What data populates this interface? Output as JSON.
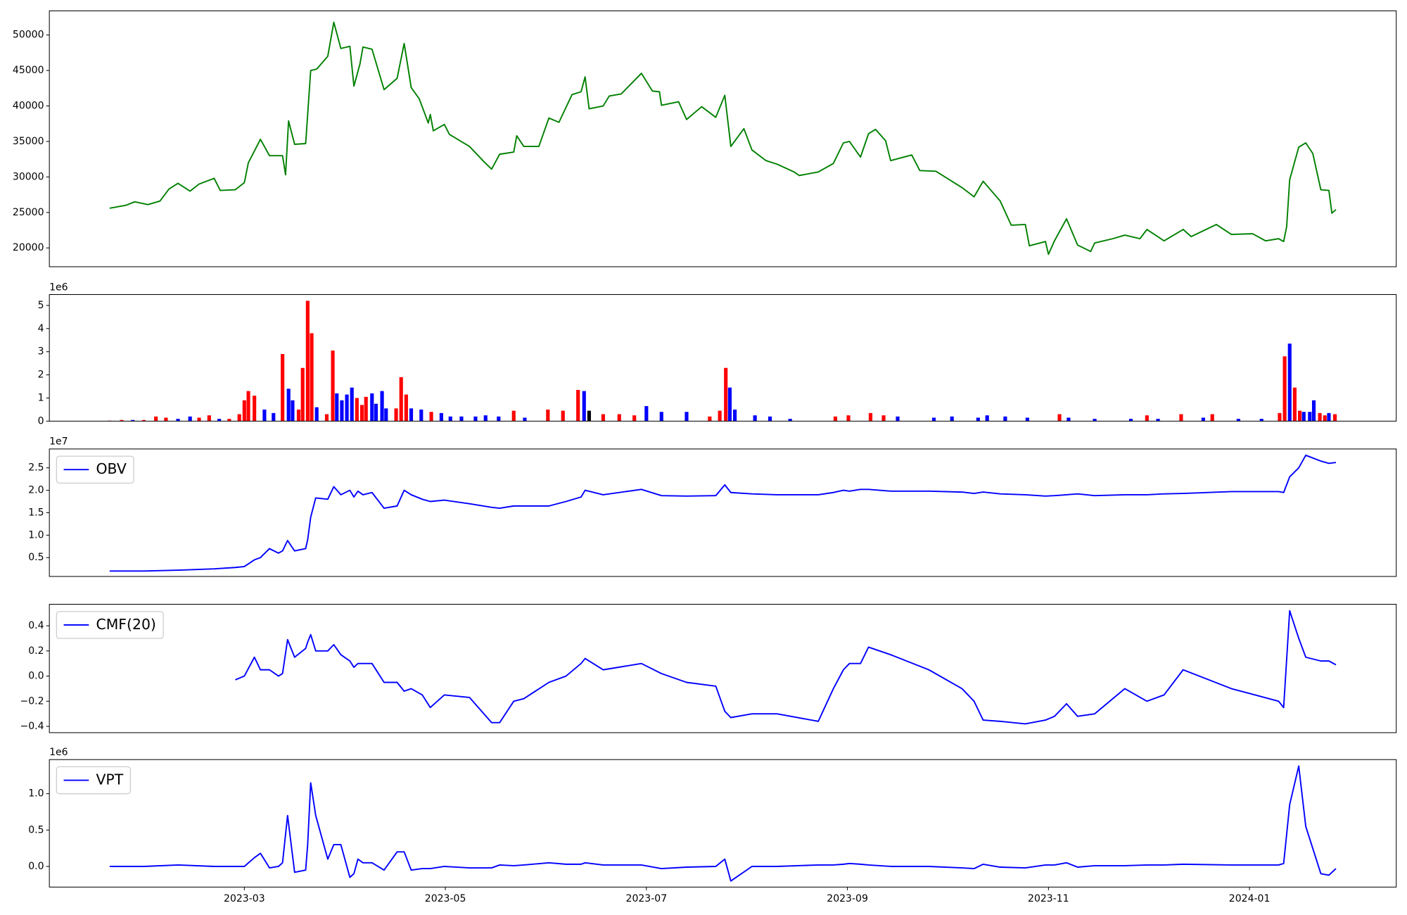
{
  "chart_data": [
    {
      "type": "line",
      "xlim": [
        1.06,
        14.46
      ],
      "ylim": [
        17350,
        53400
      ],
      "yticks": [
        20000,
        25000,
        30000,
        35000,
        40000,
        45000,
        50000
      ],
      "x": [
        1.66,
        1.82,
        1.91,
        2.04,
        2.16,
        2.25,
        2.34,
        2.46,
        2.55,
        2.7,
        2.76,
        2.91,
        3.0,
        3.04,
        3.16,
        3.25,
        3.38,
        3.41,
        3.44,
        3.5,
        3.61,
        3.66,
        3.72,
        3.83,
        3.89,
        3.96,
        4.05,
        4.09,
        4.15,
        4.18,
        4.27,
        4.39,
        4.52,
        4.59,
        4.66,
        4.74,
        4.83,
        4.85,
        4.88,
        4.99,
        5.04,
        5.24,
        5.38,
        5.46,
        5.54,
        5.68,
        5.71,
        5.78,
        5.93,
        6.03,
        6.13,
        6.26,
        6.35,
        6.39,
        6.43,
        6.57,
        6.63,
        6.75,
        6.95,
        7.06,
        7.13,
        7.15,
        7.32,
        7.4,
        7.55,
        7.69,
        7.78,
        7.84,
        7.97,
        8.05,
        8.19,
        8.3,
        8.47,
        8.52,
        8.71,
        8.86,
        8.96,
        9.02,
        9.13,
        9.21,
        9.28,
        9.38,
        9.43,
        9.64,
        9.72,
        9.88,
        10.14,
        10.26,
        10.35,
        10.52,
        10.63,
        10.77,
        10.81,
        10.97,
        11.0,
        11.06,
        11.18,
        11.29,
        11.42,
        11.46,
        11.64,
        11.76,
        11.91,
        11.98,
        12.15,
        12.34,
        12.42,
        12.67,
        12.82,
        13.03,
        13.16,
        13.29,
        13.34,
        13.37,
        13.4,
        13.49,
        13.56,
        13.63,
        13.71,
        13.79,
        13.82,
        13.86
      ],
      "series": [
        {
          "color": "#008000",
          "values": [
            25600,
            26000,
            26500,
            26100,
            26600,
            28300,
            29100,
            28000,
            29000,
            29800,
            28100,
            28200,
            29200,
            32000,
            35300,
            33000,
            33000,
            30300,
            37900,
            34600,
            34700,
            45000,
            45200,
            47000,
            51800,
            48100,
            48400,
            42800,
            45900,
            48300,
            48000,
            42300,
            43900,
            48800,
            42600,
            41000,
            37600,
            38800,
            36500,
            37400,
            36000,
            34300,
            32200,
            31100,
            33200,
            33500,
            35800,
            34300,
            34300,
            38300,
            37700,
            41600,
            42000,
            44100,
            39600,
            40000,
            41400,
            41700,
            44600,
            42100,
            42000,
            40100,
            40600,
            38100,
            39900,
            38400,
            41500,
            34300,
            36800,
            33800,
            32300,
            31800,
            30700,
            30200,
            30700,
            31900,
            34800,
            35000,
            32800,
            36100,
            36700,
            35100,
            32300,
            33100,
            30900,
            30800,
            28500,
            27200,
            29400,
            26600,
            23200,
            23300,
            20300,
            20900,
            19100,
            21000,
            24100,
            20400,
            19500,
            20700,
            21300,
            21800,
            21300,
            22600,
            21000,
            22600,
            21600,
            23300,
            21900,
            22000,
            21000,
            21300,
            20900,
            23000,
            29600,
            34200,
            34800,
            33300,
            28200,
            28100,
            24900,
            25400
          ]
        }
      ]
    },
    {
      "type": "bar",
      "offset_label": "1e6",
      "xlim": [
        1.06,
        14.46
      ],
      "ylim": [
        0,
        5.47
      ],
      "yticks": [
        0,
        1,
        2,
        3,
        4,
        5
      ],
      "x": [
        1.66,
        1.78,
        1.89,
        2.0,
        2.12,
        2.22,
        2.34,
        2.46,
        2.55,
        2.65,
        2.75,
        2.85,
        2.95,
        3.0,
        3.04,
        3.1,
        3.2,
        3.29,
        3.38,
        3.44,
        3.48,
        3.54,
        3.58,
        3.63,
        3.67,
        3.72,
        3.82,
        3.88,
        3.92,
        3.97,
        4.02,
        4.07,
        4.12,
        4.17,
        4.21,
        4.27,
        4.31,
        4.37,
        4.41,
        4.51,
        4.56,
        4.61,
        4.66,
        4.76,
        4.86,
        4.96,
        5.05,
        5.16,
        5.3,
        5.4,
        5.53,
        5.68,
        5.79,
        6.02,
        6.17,
        6.32,
        6.38,
        6.43,
        6.57,
        6.73,
        6.88,
        7.0,
        7.15,
        7.4,
        7.63,
        7.73,
        7.79,
        7.83,
        7.88,
        8.08,
        8.23,
        8.43,
        8.88,
        9.01,
        9.23,
        9.36,
        9.5,
        9.86,
        10.04,
        10.3,
        10.39,
        10.57,
        10.79,
        11.11,
        11.2,
        11.46,
        11.82,
        11.98,
        12.09,
        12.32,
        12.54,
        12.63,
        12.89,
        13.12,
        13.3,
        13.35,
        13.4,
        13.45,
        13.5,
        13.54,
        13.6,
        13.64,
        13.7,
        13.75,
        13.79,
        13.85
      ],
      "values": [
        0.02,
        0.05,
        0.05,
        0.05,
        0.2,
        0.15,
        0.1,
        0.2,
        0.15,
        0.25,
        0.1,
        0.1,
        0.3,
        0.9,
        1.3,
        1.1,
        0.5,
        0.35,
        2.9,
        1.4,
        0.9,
        0.5,
        2.3,
        5.2,
        3.8,
        0.6,
        0.3,
        3.05,
        1.2,
        0.9,
        1.15,
        1.45,
        1.0,
        0.7,
        1.05,
        1.2,
        0.75,
        1.3,
        0.55,
        0.55,
        1.9,
        1.15,
        0.55,
        0.5,
        0.4,
        0.35,
        0.2,
        0.2,
        0.2,
        0.25,
        0.2,
        0.45,
        0.15,
        0.5,
        0.45,
        1.35,
        1.3,
        0.45,
        0.3,
        0.3,
        0.25,
        0.65,
        0.4,
        0.4,
        0.2,
        0.45,
        2.3,
        1.45,
        0.5,
        0.25,
        0.2,
        0.1,
        0.2,
        0.25,
        0.35,
        0.25,
        0.2,
        0.15,
        0.2,
        0.15,
        0.25,
        0.2,
        0.15,
        0.3,
        0.15,
        0.1,
        0.1,
        0.25,
        0.1,
        0.3,
        0.15,
        0.3,
        0.1,
        0.1,
        0.35,
        2.8,
        3.35,
        1.45,
        0.45,
        0.4,
        0.4,
        0.9,
        0.35,
        0.25,
        0.35,
        0.3
      ],
      "colors": [
        "#ff0000",
        "#ff0000",
        "#0000ff",
        "#ff0000",
        "#ff0000",
        "#ff0000",
        "#0000ff",
        "#0000ff",
        "#ff0000",
        "#ff0000",
        "#0000ff",
        "#ff0000",
        "#ff0000",
        "#ff0000",
        "#ff0000",
        "#ff0000",
        "#0000ff",
        "#0000ff",
        "#ff0000",
        "#0000ff",
        "#0000ff",
        "#ff0000",
        "#ff0000",
        "#ff0000",
        "#ff0000",
        "#0000ff",
        "#ff0000",
        "#ff0000",
        "#0000ff",
        "#0000ff",
        "#0000ff",
        "#0000ff",
        "#ff0000",
        "#ff0000",
        "#ff0000",
        "#0000ff",
        "#0000ff",
        "#0000ff",
        "#0000ff",
        "#ff0000",
        "#ff0000",
        "#ff0000",
        "#0000ff",
        "#0000ff",
        "#ff0000",
        "#0000ff",
        "#0000ff",
        "#0000ff",
        "#0000ff",
        "#0000ff",
        "#0000ff",
        "#ff0000",
        "#0000ff",
        "#ff0000",
        "#ff0000",
        "#ff0000",
        "#0000ff",
        "#000000",
        "#ff0000",
        "#ff0000",
        "#ff0000",
        "#0000ff",
        "#0000ff",
        "#0000ff",
        "#ff0000",
        "#ff0000",
        "#ff0000",
        "#0000ff",
        "#0000ff",
        "#0000ff",
        "#0000ff",
        "#0000ff",
        "#ff0000",
        "#ff0000",
        "#ff0000",
        "#ff0000",
        "#0000ff",
        "#0000ff",
        "#0000ff",
        "#0000ff",
        "#0000ff",
        "#0000ff",
        "#0000ff",
        "#ff0000",
        "#0000ff",
        "#0000ff",
        "#0000ff",
        "#ff0000",
        "#0000ff",
        "#ff0000",
        "#0000ff",
        "#ff0000",
        "#0000ff",
        "#0000ff",
        "#ff0000",
        "#ff0000",
        "#0000ff",
        "#ff0000",
        "#ff0000",
        "#0000ff",
        "#0000ff",
        "#0000ff",
        "#ff0000",
        "#ff0000",
        "#0000ff",
        "#ff0000"
      ]
    },
    {
      "type": "line",
      "offset_label": "1e7",
      "legend": "upper left",
      "xlim": [
        1.06,
        14.46
      ],
      "ylim": [
        0.08,
        2.92
      ],
      "yticks": [
        0.5,
        {
          "value": 1,
          "label": "1.0"
        },
        1.5,
        {
          "value": 2,
          "label": "2.0"
        },
        2.5
      ],
      "x": [
        1.66,
        2.0,
        2.34,
        2.7,
        2.91,
        3.0,
        3.1,
        3.16,
        3.25,
        3.34,
        3.38,
        3.43,
        3.5,
        3.61,
        3.63,
        3.66,
        3.71,
        3.83,
        3.89,
        3.96,
        4.05,
        4.09,
        4.13,
        4.18,
        4.27,
        4.39,
        4.52,
        4.59,
        4.66,
        4.77,
        4.85,
        4.99,
        5.24,
        5.46,
        5.54,
        5.68,
        5.78,
        6.03,
        6.2,
        6.35,
        6.39,
        6.57,
        6.95,
        7.15,
        7.4,
        7.69,
        7.78,
        7.84,
        8.05,
        8.3,
        8.71,
        8.86,
        8.96,
        9.02,
        9.13,
        9.21,
        9.43,
        9.81,
        10.14,
        10.26,
        10.35,
        10.52,
        10.77,
        10.97,
        11.06,
        11.18,
        11.29,
        11.46,
        11.76,
        11.98,
        12.15,
        12.34,
        12.82,
        13.29,
        13.34,
        13.4,
        13.49,
        13.56,
        13.71,
        13.79,
        13.86
      ],
      "series": [
        {
          "name": "OBV",
          "color": "#0000ff",
          "values": [
            0.2,
            0.2,
            0.22,
            0.25,
            0.28,
            0.3,
            0.45,
            0.5,
            0.7,
            0.6,
            0.65,
            0.88,
            0.65,
            0.7,
            0.9,
            1.4,
            1.83,
            1.8,
            2.08,
            1.9,
            2.0,
            1.85,
            1.98,
            1.9,
            1.95,
            1.6,
            1.65,
            2.0,
            1.9,
            1.8,
            1.75,
            1.78,
            1.7,
            1.62,
            1.6,
            1.65,
            1.65,
            1.65,
            1.75,
            1.85,
            2.0,
            1.9,
            2.02,
            1.88,
            1.87,
            1.88,
            2.12,
            1.95,
            1.92,
            1.9,
            1.9,
            1.95,
            2.0,
            1.98,
            2.02,
            2.02,
            1.98,
            1.98,
            1.96,
            1.93,
            1.96,
            1.92,
            1.9,
            1.87,
            1.88,
            1.9,
            1.92,
            1.88,
            1.9,
            1.9,
            1.92,
            1.93,
            1.97,
            1.97,
            1.95,
            2.3,
            2.5,
            2.78,
            2.65,
            2.6,
            2.62
          ]
        }
      ]
    },
    {
      "type": "line",
      "legend": "upper left",
      "xlim": [
        1.06,
        14.46
      ],
      "ylim": [
        -0.45,
        0.571
      ],
      "yticks": [
        {
          "value": -0.4,
          "label": "−0.4"
        },
        {
          "value": -0.2,
          "label": "−0.2"
        },
        {
          "value": 0,
          "label": "0.0"
        },
        0.2,
        0.4
      ],
      "x": [
        1.66,
        2.0,
        2.34,
        2.7,
        2.91,
        3.0,
        3.1,
        3.16,
        3.25,
        3.34,
        3.38,
        3.43,
        3.5,
        3.61,
        3.63,
        3.66,
        3.71,
        3.83,
        3.89,
        3.96,
        4.05,
        4.09,
        4.13,
        4.18,
        4.27,
        4.39,
        4.52,
        4.59,
        4.66,
        4.77,
        4.85,
        4.99,
        5.24,
        5.46,
        5.54,
        5.68,
        5.78,
        6.03,
        6.2,
        6.35,
        6.39,
        6.57,
        6.95,
        7.15,
        7.4,
        7.69,
        7.78,
        7.84,
        8.05,
        8.3,
        8.71,
        8.86,
        8.96,
        9.02,
        9.13,
        9.21,
        9.43,
        9.81,
        10.14,
        10.26,
        10.35,
        10.52,
        10.77,
        10.97,
        11.06,
        11.18,
        11.29,
        11.46,
        11.76,
        11.98,
        12.15,
        12.34,
        12.82,
        13.29,
        13.34,
        13.4,
        13.49,
        13.56,
        13.71,
        13.79,
        13.86
      ],
      "series": [
        {
          "name": "CMF(20)",
          "color": "#0000ff",
          "values": [
            null,
            null,
            null,
            null,
            -0.03,
            0.0,
            0.15,
            0.05,
            0.05,
            0.0,
            0.02,
            0.29,
            0.15,
            0.22,
            0.27,
            0.33,
            0.2,
            0.2,
            0.25,
            0.17,
            0.12,
            0.07,
            0.1,
            0.1,
            0.1,
            -0.05,
            -0.05,
            -0.12,
            -0.1,
            -0.15,
            -0.25,
            -0.15,
            -0.17,
            -0.37,
            -0.37,
            -0.2,
            -0.18,
            -0.05,
            0.0,
            0.1,
            0.14,
            0.05,
            0.1,
            0.02,
            -0.05,
            -0.08,
            -0.28,
            -0.33,
            -0.3,
            -0.3,
            -0.36,
            -0.1,
            0.05,
            0.1,
            0.1,
            0.23,
            0.17,
            0.05,
            -0.1,
            -0.2,
            -0.35,
            -0.36,
            -0.38,
            -0.35,
            -0.32,
            -0.22,
            -0.32,
            -0.3,
            -0.1,
            -0.2,
            -0.15,
            0.05,
            -0.1,
            -0.2,
            -0.25,
            0.52,
            0.3,
            0.15,
            0.12,
            0.12,
            0.09
          ]
        }
      ]
    },
    {
      "type": "line",
      "offset_label": "1e6",
      "legend": "upper left",
      "xlim": [
        1.06,
        14.46
      ],
      "ylim": [
        -0.284,
        1.469
      ],
      "yticks": [
        {
          "value": 0,
          "label": "0.0"
        },
        0.5,
        {
          "value": 1,
          "label": "1.0"
        }
      ],
      "xticks": [
        {
          "value": 3,
          "label": "2023-03"
        },
        {
          "value": 5,
          "label": "2023-05"
        },
        {
          "value": 7,
          "label": "2023-07"
        },
        {
          "value": 9,
          "label": "2023-09"
        },
        {
          "value": 11,
          "label": "2023-11"
        },
        {
          "value": 13,
          "label": "2024-01"
        }
      ],
      "x": [
        1.66,
        2.0,
        2.34,
        2.7,
        2.91,
        3.0,
        3.1,
        3.16,
        3.25,
        3.34,
        3.38,
        3.43,
        3.5,
        3.61,
        3.63,
        3.66,
        3.71,
        3.83,
        3.89,
        3.96,
        4.05,
        4.09,
        4.13,
        4.18,
        4.27,
        4.39,
        4.52,
        4.59,
        4.66,
        4.77,
        4.85,
        4.99,
        5.24,
        5.46,
        5.54,
        5.68,
        5.78,
        6.03,
        6.2,
        6.35,
        6.39,
        6.57,
        6.95,
        7.15,
        7.4,
        7.69,
        7.78,
        7.84,
        8.05,
        8.3,
        8.71,
        8.86,
        8.96,
        9.02,
        9.13,
        9.21,
        9.43,
        9.81,
        10.14,
        10.26,
        10.35,
        10.52,
        10.77,
        10.97,
        11.06,
        11.18,
        11.29,
        11.46,
        11.76,
        11.98,
        12.15,
        12.34,
        12.82,
        13.29,
        13.34,
        13.4,
        13.49,
        13.56,
        13.71,
        13.79,
        13.86
      ],
      "series": [
        {
          "name": "VPT",
          "color": "#0000ff",
          "values": [
            0,
            0,
            0.02,
            0,
            0,
            0,
            0.12,
            0.18,
            -0.02,
            0,
            0.05,
            0.7,
            -0.08,
            -0.05,
            0.3,
            1.15,
            0.7,
            0.1,
            0.3,
            0.3,
            -0.15,
            -0.1,
            0.1,
            0.05,
            0.05,
            -0.05,
            0.2,
            0.2,
            -0.05,
            -0.03,
            -0.03,
            0,
            -0.02,
            -0.02,
            0.02,
            0.01,
            0.02,
            0.05,
            0.03,
            0.03,
            0.05,
            0.02,
            0.02,
            -0.03,
            -0.01,
            0,
            0.1,
            -0.2,
            0,
            0,
            0.02,
            0.02,
            0.03,
            0.04,
            0.03,
            0.02,
            0,
            0,
            -0.02,
            -0.03,
            0.03,
            -0.01,
            -0.02,
            0.02,
            0.02,
            0.05,
            -0.01,
            0.01,
            0.01,
            0.02,
            0.02,
            0.03,
            0.02,
            0.02,
            0.04,
            0.85,
            1.38,
            0.55,
            -0.1,
            -0.12,
            -0.03
          ]
        }
      ]
    }
  ]
}
